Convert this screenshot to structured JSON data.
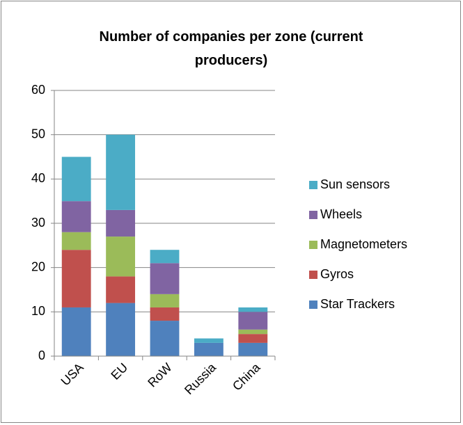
{
  "chart_data": {
    "type": "stacked_bar",
    "title": "Number of companies per zone (current producers)",
    "categories": [
      "USA",
      "EU",
      "RoW",
      "Russia",
      "China"
    ],
    "series": [
      {
        "name": "Star Trackers",
        "color": "#4f81bd",
        "values": [
          11,
          12,
          8,
          3,
          3
        ]
      },
      {
        "name": "Gyros",
        "color": "#c0504d",
        "values": [
          13,
          6,
          3,
          0,
          2
        ]
      },
      {
        "name": "Magnetometers",
        "color": "#9bbb59",
        "values": [
          4,
          9,
          3,
          0,
          1
        ]
      },
      {
        "name": "Wheels",
        "color": "#8064a2",
        "values": [
          7,
          6,
          7,
          0,
          4
        ]
      },
      {
        "name": "Sun sensors",
        "color": "#4bacc6",
        "values": [
          10,
          17,
          3,
          1,
          1
        ]
      }
    ],
    "ylim": [
      0,
      60
    ],
    "yticks": [
      0,
      10,
      20,
      30,
      40,
      50,
      60
    ],
    "grid": true,
    "legend": "right"
  }
}
